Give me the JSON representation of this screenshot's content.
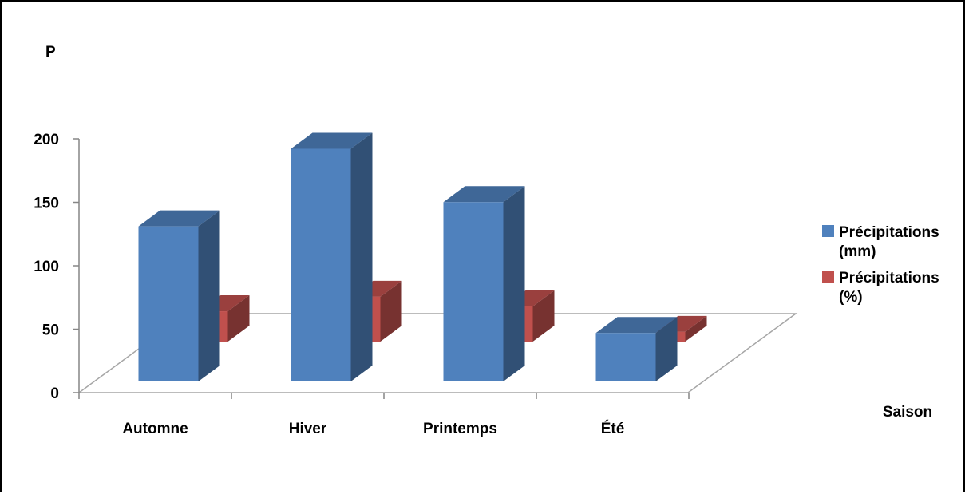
{
  "chart_data": {
    "type": "bar",
    "title": "",
    "ylabel": "P",
    "xlabel": "Saison",
    "categories": [
      "Automne",
      "Hiver",
      "Printemps",
      "Été"
    ],
    "series": [
      {
        "name": "Précipitations (mm)",
        "values": [
          128,
          192,
          148,
          40
        ],
        "color": "#4F81BD"
      },
      {
        "name": "Précipitations (%)",
        "values": [
          25,
          37,
          29,
          8
        ],
        "color": "#C0504D"
      }
    ],
    "y_ticks": [
      "0",
      "50",
      "100",
      "150",
      "200"
    ],
    "ylim": [
      0,
      200
    ],
    "grid": false,
    "three_d": true,
    "legend_position": "right",
    "legend": {
      "items": [
        {
          "line1": "Précipitations",
          "line2": "(mm)",
          "color": "#4F81BD"
        },
        {
          "line1": "Précipitations",
          "line2": "(%)",
          "color": "#C0504D"
        }
      ]
    }
  }
}
